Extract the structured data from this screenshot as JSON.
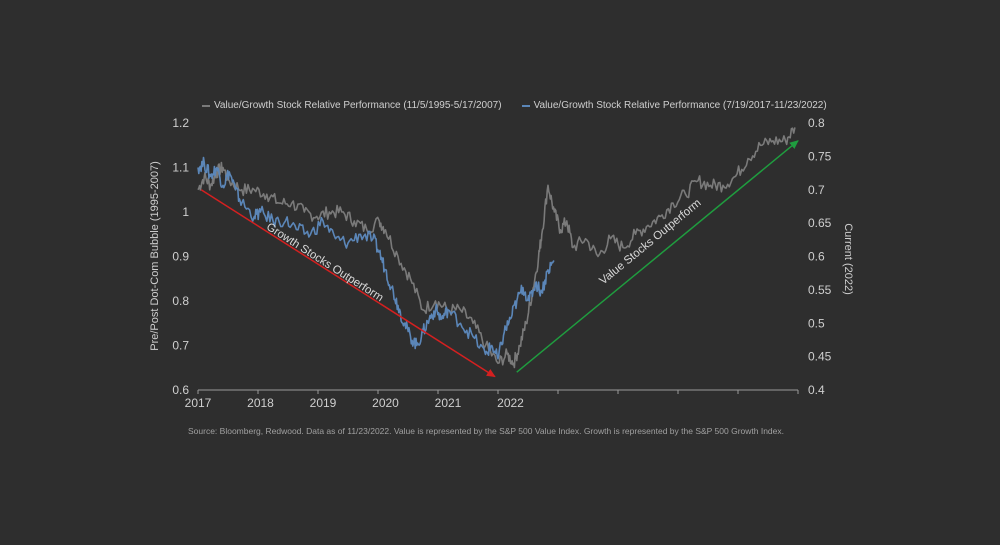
{
  "chart_data": {
    "type": "line",
    "legend": {
      "position": "top",
      "items": [
        {
          "label": "Value/Growth Stock Relative Performance (11/5/1995-5/17/2007)",
          "color": "#7a7a7a"
        },
        {
          "label": "Value/Growth Stock Relative Performance (7/19/2017-11/23/2022)",
          "color": "#5b86b8"
        }
      ]
    },
    "ylabel_left": "Pre/Post Dot-Com Bubble (1995-2007)",
    "ylabel_right": "Current (2022)",
    "x_ticks": [
      "2017",
      "2018",
      "2019",
      "2020",
      "2021",
      "2022"
    ],
    "y_left_ticks": [
      "0.6",
      "0.7",
      "0.8",
      "0.9",
      "1",
      "1.1",
      "1.2"
    ],
    "y_right_ticks": [
      "0.4",
      "0.45",
      "0.5",
      "0.55",
      "0.6",
      "0.65",
      "0.7",
      "0.75",
      "0.8"
    ],
    "ylim_left": [
      0.6,
      1.2
    ],
    "ylim_right": [
      0.4,
      0.8
    ],
    "xlim": [
      0,
      9.6
    ],
    "grid": false,
    "series": [
      {
        "name": "Value/Growth Stock Relative Performance (11/5/1995-5/17/2007)",
        "color": "#7a7a7a",
        "axis": "left",
        "x": [
          0,
          0.1,
          0.2,
          0.3,
          0.4,
          0.5,
          0.7,
          0.9,
          1.1,
          1.3,
          1.5,
          1.7,
          1.9,
          2.1,
          2.3,
          2.5,
          2.7,
          2.9,
          3.0,
          3.2,
          3.4,
          3.6,
          3.8,
          4.0,
          4.2,
          4.4,
          4.6,
          4.8,
          4.95,
          5.05,
          5.15,
          5.25,
          5.35,
          5.45,
          5.5,
          5.6,
          5.7,
          5.8,
          5.9,
          6.0,
          6.2,
          6.4,
          6.6,
          6.8,
          7.0,
          7.2,
          7.4,
          7.6,
          7.8,
          8.0,
          8.2,
          8.4,
          8.6,
          8.8,
          9.0,
          9.2,
          9.4,
          9.55
        ],
        "y": [
          1.05,
          1.08,
          1.06,
          1.09,
          1.1,
          1.07,
          1.05,
          1.05,
          1.04,
          1.02,
          1.02,
          1.0,
          0.99,
          1.0,
          1.0,
          0.98,
          0.96,
          0.98,
          0.96,
          0.9,
          0.85,
          0.78,
          0.8,
          0.78,
          0.78,
          0.75,
          0.7,
          0.66,
          0.68,
          0.66,
          0.7,
          0.75,
          0.82,
          0.9,
          0.95,
          1.06,
          1.0,
          0.96,
          0.98,
          0.92,
          0.94,
          0.9,
          0.94,
          0.92,
          0.95,
          0.97,
          0.99,
          1.02,
          1.04,
          1.07,
          1.06,
          1.06,
          1.08,
          1.12,
          1.15,
          1.16,
          1.16,
          1.19
        ]
      },
      {
        "name": "Value/Growth Stock Relative Performance (7/19/2017-11/23/2022)",
        "color": "#5b86b8",
        "axis": "left",
        "x": [
          0,
          0.1,
          0.2,
          0.3,
          0.4,
          0.5,
          0.6,
          0.7,
          0.9,
          1.0,
          1.2,
          1.4,
          1.6,
          1.8,
          2.0,
          2.2,
          2.4,
          2.6,
          2.8,
          2.9,
          3.0,
          3.1,
          3.2,
          3.3,
          3.4,
          3.5,
          3.6,
          3.7,
          3.8,
          3.9,
          4.0,
          4.2,
          4.4,
          4.6,
          4.7,
          4.8,
          4.9,
          5.0,
          5.1,
          5.2,
          5.3,
          5.4,
          5.5,
          5.6,
          5.7
        ],
        "y": [
          1.1,
          1.11,
          1.08,
          1.1,
          1.06,
          1.09,
          1.05,
          1.02,
          0.99,
          1.0,
          0.98,
          0.98,
          0.96,
          0.95,
          0.98,
          0.94,
          0.93,
          0.95,
          0.94,
          0.91,
          0.87,
          0.83,
          0.79,
          0.75,
          0.72,
          0.7,
          0.73,
          0.76,
          0.78,
          0.76,
          0.78,
          0.75,
          0.72,
          0.68,
          0.7,
          0.67,
          0.73,
          0.76,
          0.8,
          0.83,
          0.8,
          0.84,
          0.82,
          0.87,
          0.89
        ]
      }
    ],
    "annotations": [
      {
        "text": "Growth Stocks Outperform",
        "color": "#d42020",
        "from": [
          0.05,
          1.05
        ],
        "to": [
          4.75,
          0.63
        ]
      },
      {
        "text": "Value Stocks Outperform",
        "color": "#1f9d3f",
        "from": [
          5.1,
          0.64
        ],
        "to": [
          9.6,
          1.16
        ]
      }
    ]
  },
  "footer": {
    "source": "Source: Bloomberg, Redwood. Data as of 11/23/2022. Value is represented by the S&P 500 Value Index. Growth is represented by the S&P 500 Growth Index."
  }
}
